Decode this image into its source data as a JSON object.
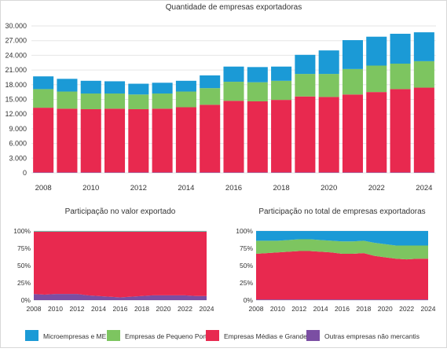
{
  "colors": {
    "micro": "#1b9ad6",
    "pequeno": "#7dc560",
    "medias": "#e8294f",
    "outras": "#7b4ea3",
    "grid": "#e6e6e6",
    "axis_text": "#333333"
  },
  "legend": {
    "items": [
      {
        "label": "Microempresas e MEI",
        "color": "#1b9ad6"
      },
      {
        "label": "Empresas de Pequeno Porte",
        "color": "#7dc560"
      },
      {
        "label": "Empresas Médias e Grandes",
        "color": "#e8294f"
      },
      {
        "label": "Outras empresas não mercantis",
        "color": "#7b4ea3"
      }
    ],
    "placement": "bottom"
  },
  "chart_data": [
    {
      "type": "bar",
      "stacked": true,
      "title": "Quantidade de empresas exportadoras",
      "xlabel": "",
      "ylabel": "",
      "categories": [
        "2008",
        "2009",
        "2010",
        "2011",
        "2012",
        "2013",
        "2014",
        "2015",
        "2016",
        "2017",
        "2018",
        "2019",
        "2020",
        "2021",
        "2022",
        "2023",
        "2024"
      ],
      "x_tick_labels": [
        "2008",
        "2010",
        "2012",
        "2014",
        "2016",
        "2018",
        "2020",
        "2022",
        "2024"
      ],
      "y_tick_labels": [
        "0",
        "3.000",
        "6.000",
        "9.000",
        "12.000",
        "15.000",
        "18.000",
        "21.000",
        "24.000",
        "27.000",
        "30.000"
      ],
      "ylim": [
        0,
        30000
      ],
      "grid": true,
      "series": [
        {
          "name": "Outras empresas não mercantis",
          "values": [
            100,
            100,
            100,
            100,
            100,
            100,
            100,
            100,
            100,
            100,
            100,
            100,
            100,
            100,
            100,
            100,
            100
          ]
        },
        {
          "name": "Empresas Médias e Grandes",
          "values": [
            13200,
            13000,
            12900,
            13000,
            12900,
            13000,
            13300,
            13800,
            14600,
            14500,
            14800,
            15500,
            15400,
            15900,
            16400,
            17000,
            17300
          ]
        },
        {
          "name": "Empresas de Pequeno Porte",
          "values": [
            3800,
            3500,
            3200,
            3100,
            3000,
            3100,
            3200,
            3400,
            3900,
            3900,
            3900,
            4600,
            4700,
            5200,
            5400,
            5200,
            5400
          ]
        },
        {
          "name": "Microempresas e MEI",
          "values": [
            2600,
            2600,
            2600,
            2500,
            2200,
            2200,
            2200,
            2600,
            3100,
            3100,
            2900,
            3900,
            4800,
            5900,
            5900,
            6100,
            5900
          ]
        }
      ]
    },
    {
      "type": "area",
      "stacked": true,
      "percent": true,
      "title": "Participação no valor exportado",
      "x": [
        2008,
        2009,
        2010,
        2011,
        2012,
        2013,
        2014,
        2015,
        2016,
        2017,
        2018,
        2019,
        2020,
        2021,
        2022,
        2023,
        2024
      ],
      "x_tick_labels": [
        "2008",
        "2010",
        "2012",
        "2014",
        "2016",
        "2018",
        "2020",
        "2022",
        "2024"
      ],
      "y_tick_labels": [
        "0%",
        "25%",
        "50%",
        "75%",
        "100%"
      ],
      "ylim": [
        0,
        100
      ],
      "series": [
        {
          "name": "Outras empresas não mercantis",
          "values": [
            9,
            8,
            9,
            9,
            9,
            7,
            6,
            5,
            4,
            5,
            6,
            7,
            7,
            7,
            7,
            6,
            6
          ]
        },
        {
          "name": "Empresas Médias e Grandes",
          "values": [
            90,
            91,
            90,
            90,
            90,
            92,
            93,
            94,
            95,
            94,
            93,
            92,
            92,
            92,
            92,
            93,
            93
          ]
        },
        {
          "name": "Empresas de Pequeno Porte",
          "values": [
            0.6,
            0.6,
            0.6,
            0.6,
            0.6,
            0.6,
            0.6,
            0.6,
            0.6,
            0.6,
            0.6,
            0.6,
            0.6,
            0.6,
            0.6,
            0.6,
            0.6
          ]
        },
        {
          "name": "Microempresas e MEI",
          "values": [
            0.4,
            0.4,
            0.4,
            0.4,
            0.4,
            0.4,
            0.4,
            0.4,
            0.4,
            0.4,
            0.4,
            0.4,
            0.4,
            0.4,
            0.4,
            0.4,
            0.4
          ]
        }
      ]
    },
    {
      "type": "area",
      "stacked": true,
      "percent": true,
      "title": "Participação no total de empresas exportadoras",
      "x": [
        2008,
        2009,
        2010,
        2011,
        2012,
        2013,
        2014,
        2015,
        2016,
        2017,
        2018,
        2019,
        2020,
        2021,
        2022,
        2023,
        2024
      ],
      "x_tick_labels": [
        "2008",
        "2010",
        "2012",
        "2014",
        "2016",
        "2018",
        "2020",
        "2022",
        "2024"
      ],
      "y_tick_labels": [
        "0%",
        "25%",
        "50%",
        "75%",
        "100%"
      ],
      "ylim": [
        0,
        100
      ],
      "series": [
        {
          "name": "Outras empresas não mercantis",
          "values": [
            1,
            1,
            1,
            1,
            1,
            1,
            1,
            1,
            1,
            1,
            1,
            1,
            1,
            1,
            1,
            1,
            1
          ]
        },
        {
          "name": "Empresas Médias e Grandes",
          "values": [
            66,
            67,
            68,
            69,
            70,
            70,
            69,
            68,
            66,
            66,
            67,
            63,
            61,
            59,
            58,
            59,
            59
          ]
        },
        {
          "name": "Empresas de Pequeno Porte",
          "values": [
            19,
            18,
            17,
            17,
            17,
            17,
            17,
            17,
            18,
            18,
            18,
            19,
            19,
            19,
            20,
            19,
            19
          ]
        },
        {
          "name": "Microempresas e MEI",
          "values": [
            14,
            14,
            14,
            13,
            12,
            12,
            13,
            14,
            15,
            15,
            14,
            17,
            19,
            21,
            21,
            21,
            21
          ]
        }
      ]
    }
  ]
}
